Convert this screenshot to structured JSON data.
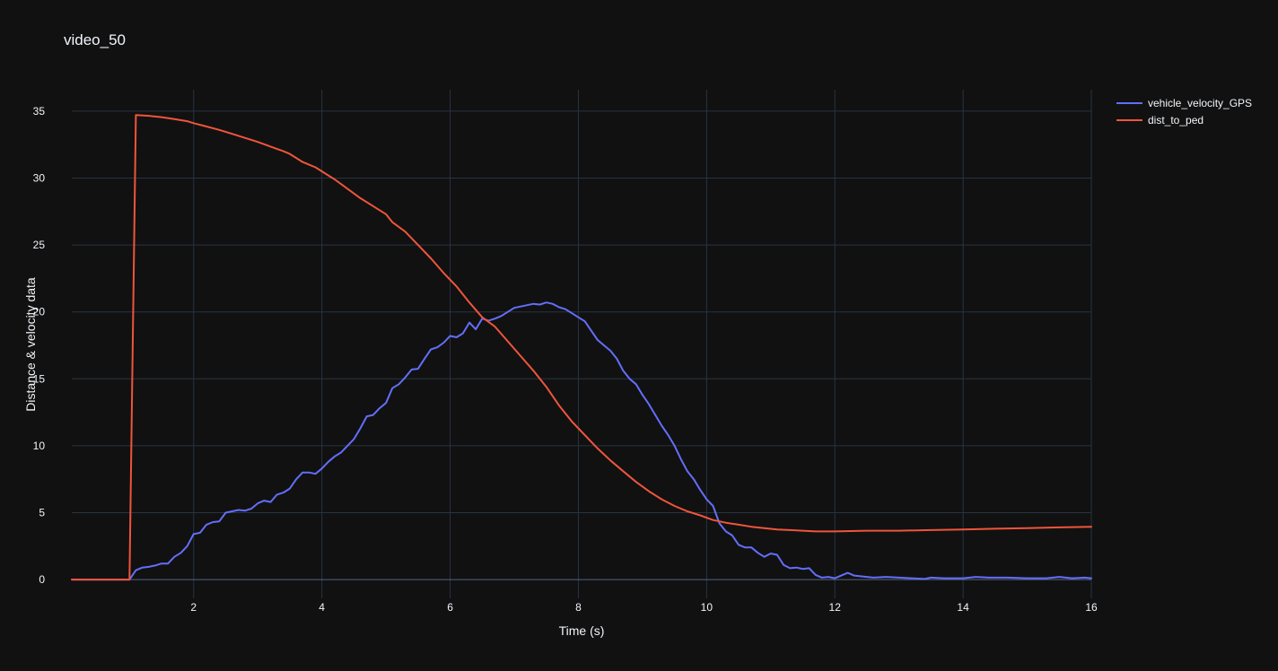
{
  "chart_data": {
    "type": "line",
    "title": "video_50",
    "xlabel": "Time (s)",
    "ylabel": "Distance & velocity data",
    "xlim": [
      0.1,
      16
    ],
    "ylim": [
      -1.4,
      36.6
    ],
    "x_ticks": [
      2,
      4,
      6,
      8,
      10,
      12,
      14,
      16
    ],
    "y_ticks": [
      0,
      5,
      10,
      15,
      20,
      25,
      30,
      35
    ],
    "grid": true,
    "legend_position": "top-right",
    "colors": {
      "background": "#111111",
      "grid": "#283442",
      "zero_line": "#506784",
      "text": "#f2f5fa"
    },
    "series": [
      {
        "name": "vehicle_velocity_GPS",
        "color": "#636efa",
        "points": [
          [
            0.1,
            0
          ],
          [
            1.0,
            0
          ],
          [
            1.1,
            0.7
          ],
          [
            1.2,
            0.9
          ],
          [
            1.3,
            0.95
          ],
          [
            1.4,
            1.05
          ],
          [
            1.5,
            1.2
          ],
          [
            1.6,
            1.2
          ],
          [
            1.7,
            1.7
          ],
          [
            1.8,
            2.0
          ],
          [
            1.9,
            2.5
          ],
          [
            2.0,
            3.4
          ],
          [
            2.1,
            3.5
          ],
          [
            2.2,
            4.1
          ],
          [
            2.3,
            4.3
          ],
          [
            2.4,
            4.35
          ],
          [
            2.5,
            5.0
          ],
          [
            2.6,
            5.1
          ],
          [
            2.7,
            5.2
          ],
          [
            2.8,
            5.15
          ],
          [
            2.9,
            5.3
          ],
          [
            3.0,
            5.7
          ],
          [
            3.1,
            5.9
          ],
          [
            3.2,
            5.8
          ],
          [
            3.3,
            6.35
          ],
          [
            3.4,
            6.5
          ],
          [
            3.5,
            6.8
          ],
          [
            3.6,
            7.5
          ],
          [
            3.7,
            8.0
          ],
          [
            3.8,
            8.0
          ],
          [
            3.9,
            7.9
          ],
          [
            4.0,
            8.3
          ],
          [
            4.1,
            8.8
          ],
          [
            4.2,
            9.2
          ],
          [
            4.3,
            9.5
          ],
          [
            4.4,
            10.0
          ],
          [
            4.5,
            10.5
          ],
          [
            4.6,
            11.3
          ],
          [
            4.7,
            12.2
          ],
          [
            4.8,
            12.3
          ],
          [
            4.9,
            12.8
          ],
          [
            5.0,
            13.2
          ],
          [
            5.1,
            14.3
          ],
          [
            5.2,
            14.6
          ],
          [
            5.3,
            15.1
          ],
          [
            5.4,
            15.7
          ],
          [
            5.5,
            15.75
          ],
          [
            5.6,
            16.5
          ],
          [
            5.7,
            17.2
          ],
          [
            5.8,
            17.35
          ],
          [
            5.9,
            17.7
          ],
          [
            6.0,
            18.2
          ],
          [
            6.1,
            18.1
          ],
          [
            6.2,
            18.4
          ],
          [
            6.3,
            19.2
          ],
          [
            6.4,
            18.7
          ],
          [
            6.5,
            19.5
          ],
          [
            6.6,
            19.35
          ],
          [
            6.7,
            19.5
          ],
          [
            6.8,
            19.7
          ],
          [
            6.9,
            20.0
          ],
          [
            7.0,
            20.3
          ],
          [
            7.1,
            20.4
          ],
          [
            7.2,
            20.5
          ],
          [
            7.3,
            20.6
          ],
          [
            7.4,
            20.55
          ],
          [
            7.5,
            20.7
          ],
          [
            7.6,
            20.6
          ],
          [
            7.7,
            20.35
          ],
          [
            7.8,
            20.2
          ],
          [
            7.9,
            19.9
          ],
          [
            8.0,
            19.6
          ],
          [
            8.1,
            19.3
          ],
          [
            8.2,
            18.6
          ],
          [
            8.3,
            17.9
          ],
          [
            8.4,
            17.5
          ],
          [
            8.5,
            17.1
          ],
          [
            8.6,
            16.5
          ],
          [
            8.7,
            15.6
          ],
          [
            8.8,
            15.0
          ],
          [
            8.9,
            14.6
          ],
          [
            9.0,
            13.8
          ],
          [
            9.1,
            13.1
          ],
          [
            9.2,
            12.3
          ],
          [
            9.3,
            11.5
          ],
          [
            9.4,
            10.8
          ],
          [
            9.5,
            10.0
          ],
          [
            9.6,
            9.0
          ],
          [
            9.7,
            8.1
          ],
          [
            9.8,
            7.5
          ],
          [
            9.9,
            6.7
          ],
          [
            10.0,
            6.0
          ],
          [
            10.1,
            5.5
          ],
          [
            10.2,
            4.2
          ],
          [
            10.3,
            3.6
          ],
          [
            10.4,
            3.3
          ],
          [
            10.5,
            2.6
          ],
          [
            10.6,
            2.4
          ],
          [
            10.7,
            2.4
          ],
          [
            10.8,
            2.0
          ],
          [
            10.9,
            1.7
          ],
          [
            11.0,
            1.95
          ],
          [
            11.1,
            1.85
          ],
          [
            11.2,
            1.1
          ],
          [
            11.3,
            0.85
          ],
          [
            11.4,
            0.9
          ],
          [
            11.5,
            0.8
          ],
          [
            11.6,
            0.85
          ],
          [
            11.7,
            0.35
          ],
          [
            11.8,
            0.15
          ],
          [
            11.9,
            0.2
          ],
          [
            12.0,
            0.1
          ],
          [
            12.1,
            0.3
          ],
          [
            12.2,
            0.5
          ],
          [
            12.3,
            0.3
          ],
          [
            12.4,
            0.25
          ],
          [
            12.5,
            0.2
          ],
          [
            12.6,
            0.15
          ],
          [
            12.8,
            0.2
          ],
          [
            13.0,
            0.15
          ],
          [
            13.2,
            0.1
          ],
          [
            13.4,
            0.05
          ],
          [
            13.5,
            0.15
          ],
          [
            13.7,
            0.1
          ],
          [
            14.0,
            0.1
          ],
          [
            14.2,
            0.2
          ],
          [
            14.4,
            0.15
          ],
          [
            14.7,
            0.15
          ],
          [
            15.0,
            0.1
          ],
          [
            15.3,
            0.1
          ],
          [
            15.5,
            0.2
          ],
          [
            15.7,
            0.1
          ],
          [
            15.9,
            0.15
          ],
          [
            16.0,
            0.1
          ]
        ]
      },
      {
        "name": "dist_to_ped",
        "color": "#ef553b",
        "points": [
          [
            0.1,
            0
          ],
          [
            1.0,
            0
          ],
          [
            1.1,
            34.7
          ],
          [
            1.3,
            34.65
          ],
          [
            1.5,
            34.55
          ],
          [
            1.7,
            34.4
          ],
          [
            1.9,
            34.25
          ],
          [
            2.0,
            34.1
          ],
          [
            2.2,
            33.85
          ],
          [
            2.4,
            33.6
          ],
          [
            2.6,
            33.3
          ],
          [
            2.8,
            33.0
          ],
          [
            3.0,
            32.7
          ],
          [
            3.2,
            32.35
          ],
          [
            3.4,
            32.0
          ],
          [
            3.5,
            31.8
          ],
          [
            3.6,
            31.5
          ],
          [
            3.7,
            31.2
          ],
          [
            3.8,
            31.0
          ],
          [
            3.9,
            30.8
          ],
          [
            4.0,
            30.5
          ],
          [
            4.2,
            29.9
          ],
          [
            4.4,
            29.2
          ],
          [
            4.6,
            28.5
          ],
          [
            4.8,
            27.9
          ],
          [
            4.9,
            27.6
          ],
          [
            5.0,
            27.3
          ],
          [
            5.1,
            26.7
          ],
          [
            5.3,
            26.0
          ],
          [
            5.5,
            25.0
          ],
          [
            5.7,
            24.0
          ],
          [
            5.9,
            22.9
          ],
          [
            6.1,
            21.9
          ],
          [
            6.3,
            20.7
          ],
          [
            6.5,
            19.6
          ],
          [
            6.7,
            18.9
          ],
          [
            6.9,
            17.8
          ],
          [
            7.1,
            16.7
          ],
          [
            7.3,
            15.6
          ],
          [
            7.5,
            14.4
          ],
          [
            7.7,
            13.0
          ],
          [
            7.9,
            11.8
          ],
          [
            8.1,
            10.8
          ],
          [
            8.3,
            9.8
          ],
          [
            8.5,
            8.9
          ],
          [
            8.7,
            8.1
          ],
          [
            8.9,
            7.3
          ],
          [
            9.1,
            6.6
          ],
          [
            9.3,
            6.0
          ],
          [
            9.5,
            5.5
          ],
          [
            9.7,
            5.1
          ],
          [
            9.9,
            4.8
          ],
          [
            10.1,
            4.45
          ],
          [
            10.3,
            4.25
          ],
          [
            10.5,
            4.1
          ],
          [
            10.7,
            3.95
          ],
          [
            10.9,
            3.85
          ],
          [
            11.1,
            3.75
          ],
          [
            11.3,
            3.7
          ],
          [
            11.5,
            3.65
          ],
          [
            11.7,
            3.6
          ],
          [
            12.0,
            3.6
          ],
          [
            12.5,
            3.65
          ],
          [
            13.0,
            3.65
          ],
          [
            13.5,
            3.7
          ],
          [
            14.0,
            3.75
          ],
          [
            14.5,
            3.8
          ],
          [
            15.0,
            3.85
          ],
          [
            15.5,
            3.9
          ],
          [
            16.0,
            3.95
          ]
        ]
      }
    ]
  }
}
